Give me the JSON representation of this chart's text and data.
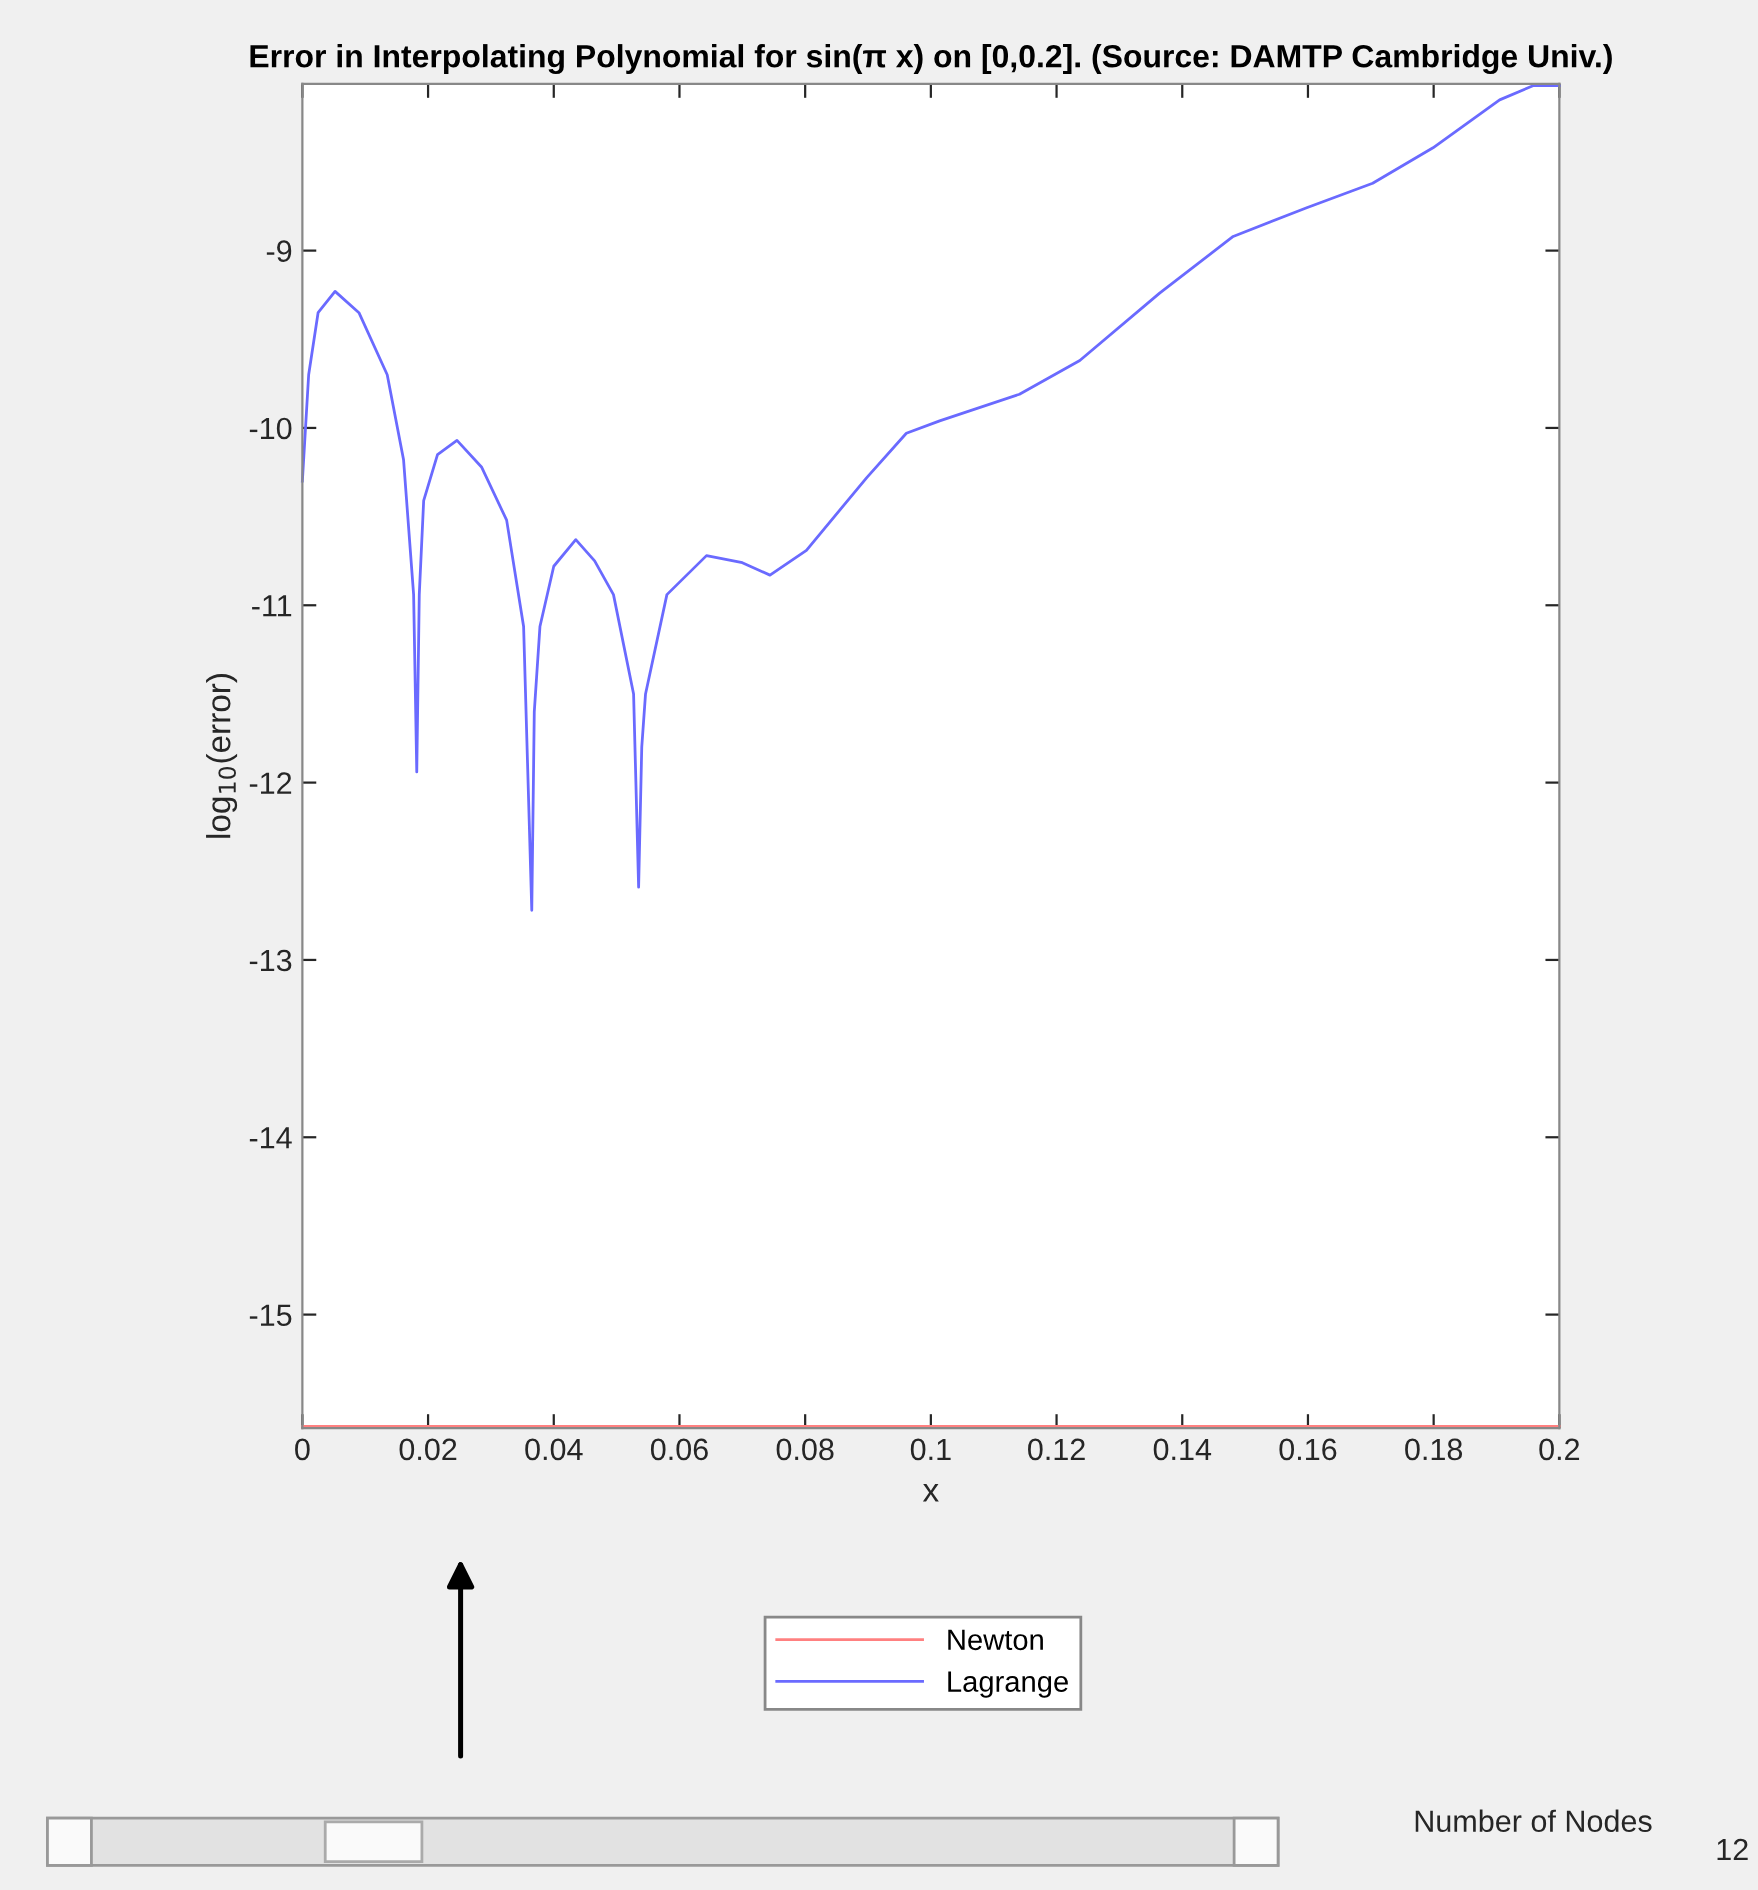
{
  "chart_data": {
    "type": "line",
    "title": "Error in Interpolating Polynomial for sin(π x) on [0,0.2]. (Source: DAMTP Cambridge Univ.)",
    "xlabel": "x",
    "ylabel": "log$_{10}$(error)",
    "xlim": [
      0,
      0.2
    ],
    "ylim": [
      -15.64,
      -8.06
    ],
    "xticks": [
      0,
      0.02,
      0.04,
      0.06,
      0.08,
      0.1,
      0.12,
      0.14,
      0.16,
      0.18,
      0.2
    ],
    "yticks": [
      -15,
      -14,
      -13,
      -12,
      -11,
      -10,
      -9
    ],
    "grid": false,
    "legend": "bottom",
    "line_style": "solid",
    "marker": "none",
    "annotations": [
      "Number of Nodes",
      "12"
    ],
    "series": [
      {
        "name": "Newton",
        "color": "#ff8080",
        "x": [
          0,
          0.2
        ],
        "values": [
          -15.63,
          -15.63
        ]
      },
      {
        "name": "Lagrange",
        "color": "#6a6aff",
        "x": [
          0,
          0.001,
          0.0025,
          0.0052,
          0.009,
          0.0135,
          0.0161,
          0.0177,
          0.0182,
          0.0186,
          0.0193,
          0.0215,
          0.0246,
          0.0285,
          0.0325,
          0.0352,
          0.0365,
          0.0369,
          0.0378,
          0.04,
          0.0435,
          0.0465,
          0.0495,
          0.0527,
          0.0535,
          0.054,
          0.0546,
          0.058,
          0.0643,
          0.07,
          0.0744,
          0.0802,
          0.0898,
          0.0961,
          0.1014,
          0.1141,
          0.1237,
          0.1364,
          0.1481,
          0.1597,
          0.1703,
          0.1799,
          0.1905,
          0.1958,
          0.2
        ],
        "values": [
          -10.3,
          -9.7,
          -9.35,
          -9.23,
          -9.35,
          -9.7,
          -10.18,
          -10.94,
          -11.94,
          -10.94,
          -10.41,
          -10.15,
          -10.07,
          -10.22,
          -10.52,
          -11.12,
          -12.72,
          -11.6,
          -11.12,
          -10.78,
          -10.63,
          -10.75,
          -10.94,
          -11.5,
          -12.59,
          -11.8,
          -11.5,
          -10.94,
          -10.72,
          -10.76,
          -10.83,
          -10.69,
          -10.28,
          -10.03,
          -9.96,
          -9.81,
          -9.62,
          -9.24,
          -8.92,
          -8.76,
          -8.62,
          -8.42,
          -8.15,
          -8.07,
          -8.07
        ]
      }
    ]
  }
}
